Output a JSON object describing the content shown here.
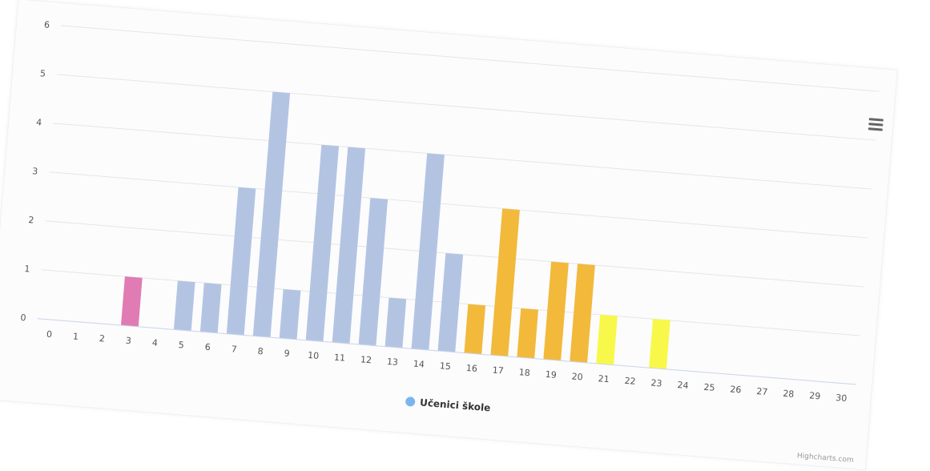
{
  "chart_data": {
    "type": "bar",
    "categories": [
      "0",
      "1",
      "2",
      "3",
      "4",
      "5",
      "6",
      "7",
      "8",
      "9",
      "10",
      "11",
      "12",
      "13",
      "14",
      "15",
      "16",
      "17",
      "18",
      "19",
      "20",
      "21",
      "22",
      "23",
      "24",
      "25",
      "26",
      "27",
      "28",
      "29",
      "30"
    ],
    "values": [
      0,
      0,
      0,
      1,
      0,
      1,
      1,
      3,
      5,
      1,
      4,
      4,
      3,
      1,
      4,
      2,
      1,
      3,
      1,
      2,
      2,
      1,
      0,
      1,
      0,
      0,
      0,
      0,
      0,
      0,
      0
    ],
    "ylim": [
      0,
      6
    ],
    "yticks": [
      0,
      1,
      2,
      3,
      4,
      5,
      6
    ],
    "grid": true,
    "legend": {
      "position": "bottom-center",
      "label": "Učenici škole",
      "color": "#7cb5ec"
    },
    "colors": {
      "pink": "#e07bb3",
      "blue": "#b3c4e3",
      "orange": "#f2b93b",
      "yellow": "#f8f84a"
    },
    "bar_colors": [
      "blue",
      "blue",
      "blue",
      "pink",
      "blue",
      "blue",
      "blue",
      "blue",
      "blue",
      "blue",
      "blue",
      "blue",
      "blue",
      "blue",
      "blue",
      "blue",
      "orange",
      "orange",
      "orange",
      "orange",
      "orange",
      "yellow",
      "yellow",
      "yellow",
      "yellow",
      "yellow",
      "yellow",
      "yellow",
      "yellow",
      "yellow",
      "yellow"
    ]
  },
  "credits": "Highcharts.com",
  "menu_icon": "hamburger-menu-icon"
}
